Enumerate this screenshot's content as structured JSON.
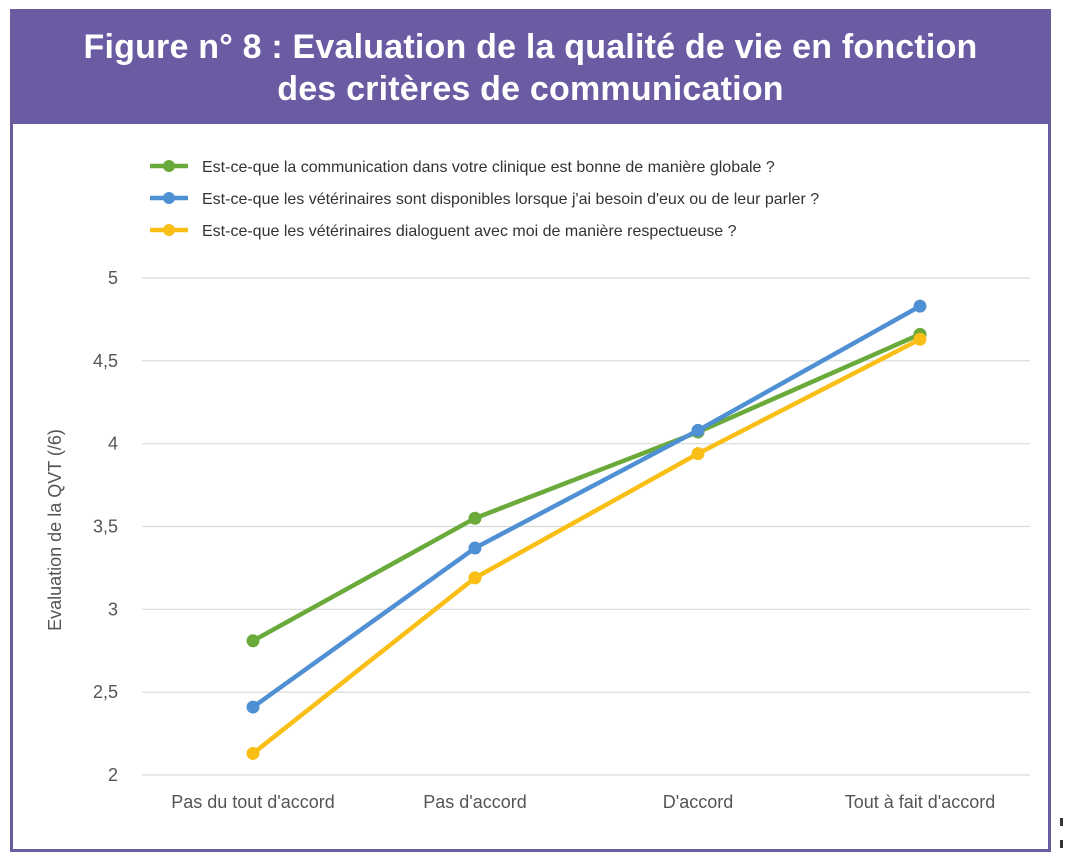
{
  "header": {
    "title_line1": "Figure n° 8 : Evaluation de la qualité de vie en fonction",
    "title_line2": "des critères de communication"
  },
  "colors": {
    "header_bg": "#6a5ba3",
    "frame": "#6b5b9f",
    "grid": "#d9d9d9"
  },
  "chart_data": {
    "type": "line",
    "title": "Figure n° 8 : Evaluation de la qualité de vie en fonction des critères de communication",
    "xlabel": "",
    "ylabel": "Evaluation de la QVT (/6)",
    "categories": [
      "Pas du tout d'accord",
      "Pas d'accord",
      "D'accord",
      "Tout à fait d'accord"
    ],
    "ylim": [
      2,
      5
    ],
    "yticks": [
      {
        "value": 2,
        "label": "2"
      },
      {
        "value": 2.5,
        "label": "2,5"
      },
      {
        "value": 3,
        "label": "3"
      },
      {
        "value": 3.5,
        "label": "3,5"
      },
      {
        "value": 4,
        "label": "4"
      },
      {
        "value": 4.5,
        "label": "4,5"
      },
      {
        "value": 5,
        "label": "5"
      }
    ],
    "grid": true,
    "legend_position": "top",
    "series": [
      {
        "name": "Est-ce-que la communication dans votre clinique est bonne de manière globale ?",
        "color": "#6aaa3a",
        "values": [
          2.81,
          3.55,
          4.07,
          4.66
        ]
      },
      {
        "name": "Est-ce-que les vétérinaires sont disponibles lorsque j'ai besoin d'eux ou de leur parler ?",
        "color": "#4f8fd3",
        "values": [
          2.41,
          3.37,
          4.08,
          4.83
        ]
      },
      {
        "name": "Est-ce-que les vétérinaires dialoguent avec moi de manière respectueuse ?",
        "color": "#f9bf16",
        "values": [
          2.13,
          3.19,
          3.94,
          4.63
        ]
      }
    ]
  }
}
